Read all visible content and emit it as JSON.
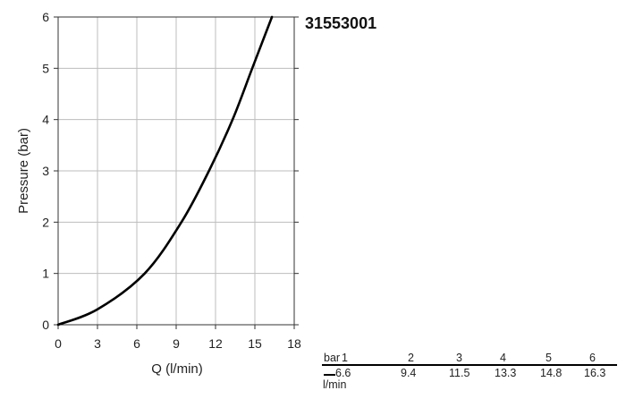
{
  "product_code": "31553001",
  "chart_data": {
    "type": "line",
    "title": "31553001",
    "xlabel": "Q (l/min)",
    "ylabel": "Pressure (bar)",
    "xlim": [
      0,
      18
    ],
    "ylim": [
      0,
      6
    ],
    "xticks": [
      0,
      3,
      6,
      9,
      12,
      15,
      18
    ],
    "yticks": [
      0,
      1,
      2,
      3,
      4,
      5,
      6
    ],
    "grid": true,
    "series": [
      {
        "x": [
          0,
          3,
          6.6,
          9.4,
          11.5,
          13.3,
          14.8,
          16.3
        ],
        "y": [
          0,
          0.3,
          1,
          2,
          3,
          4,
          5,
          6
        ]
      }
    ]
  },
  "flow_table": {
    "row_label_top": "bar",
    "row_label_bottom": "l/min",
    "bar_values": [
      "1",
      "2",
      "3",
      "4",
      "5",
      "6"
    ],
    "flow_values": [
      "6.6",
      "9.4",
      "11.5",
      "13.3",
      "14.8",
      "16.3"
    ]
  }
}
